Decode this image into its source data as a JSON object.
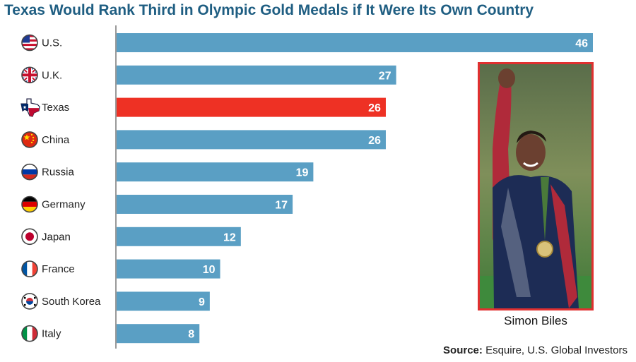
{
  "chart_data": {
    "type": "bar",
    "orientation": "horizontal",
    "title": "Texas Would Rank Third in Olympic Gold Medals if It Were Its Own Country",
    "categories": [
      "U.S.",
      "U.K.",
      "Texas",
      "China",
      "Russia",
      "Germany",
      "Japan",
      "France",
      "South Korea",
      "Italy"
    ],
    "values": [
      46,
      27,
      26,
      26,
      19,
      17,
      12,
      10,
      9,
      8
    ],
    "flags": [
      "us-flag-icon",
      "uk-flag-icon",
      "texas-flag-icon",
      "china-flag-icon",
      "russia-flag-icon",
      "germany-flag-icon",
      "japan-flag-icon",
      "france-flag-icon",
      "south-korea-flag-icon",
      "italy-flag-icon"
    ],
    "highlight_index": 2,
    "xlim": [
      0,
      46
    ],
    "grid": false,
    "colors": {
      "bar": "#5a9fc4",
      "highlight": "#ee3124"
    }
  },
  "photo": {
    "caption": "Simon Biles",
    "frame_color": "#e03030"
  },
  "source": {
    "label": "Source:",
    "text": " Esquire, U.S. Global Investors"
  }
}
